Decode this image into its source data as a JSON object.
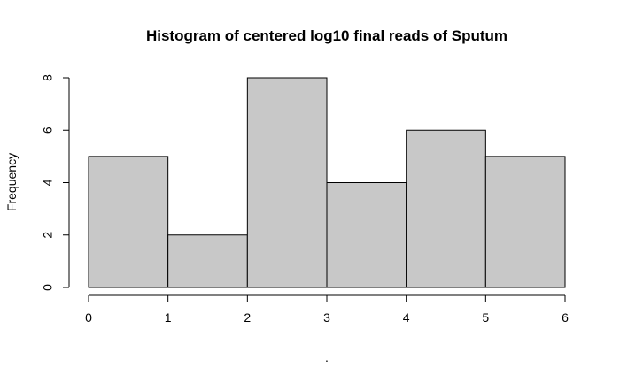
{
  "chart_data": {
    "type": "bar",
    "title": "Histogram of centered log10 final reads of Sputum",
    "xlabel": ".",
    "ylabel": "Frequency",
    "bins": [
      [
        0,
        1
      ],
      [
        1,
        2
      ],
      [
        2,
        3
      ],
      [
        3,
        4
      ],
      [
        4,
        5
      ],
      [
        5,
        6
      ]
    ],
    "values": [
      5,
      2,
      8,
      4,
      6,
      5
    ],
    "xlim": [
      0,
      6
    ],
    "ylim": [
      0,
      8
    ],
    "x_ticks": [
      "0",
      "1",
      "2",
      "3",
      "4",
      "5",
      "6"
    ],
    "y_ticks": [
      "0",
      "2",
      "4",
      "6",
      "8"
    ],
    "colors": {
      "bar_fill": "#c8c8c8",
      "bar_stroke": "#000000"
    },
    "grid": false
  }
}
